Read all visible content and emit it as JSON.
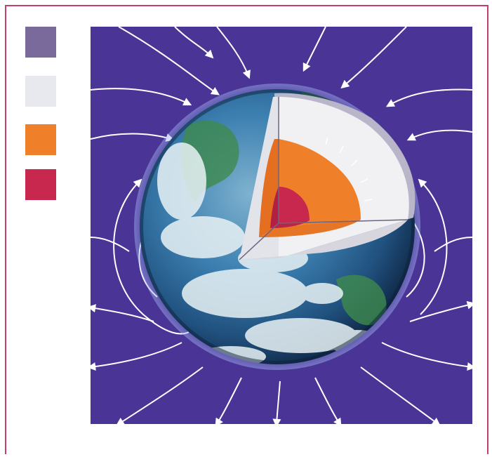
{
  "legend": {
    "swatches": [
      {
        "name": "crust-swatch",
        "color": "#7a6a9c"
      },
      {
        "name": "mantle-swatch",
        "color": "#e8e9ee"
      },
      {
        "name": "outer-core-swatch",
        "color": "#f07f2a"
      },
      {
        "name": "inner-core-swatch",
        "color": "#c8284e"
      }
    ]
  },
  "colors": {
    "background": "#4a3496",
    "field_lines": "#ffffff",
    "frame": "#c0406a",
    "ocean": "#2f6da3",
    "land": "#3f8a4d",
    "cloud": "#e9f2f5",
    "mantle": "#f1f1f4",
    "mantle_shadow": "#b9b6c9",
    "outer_core": "#f07f2a",
    "inner_core": "#c8284e"
  }
}
